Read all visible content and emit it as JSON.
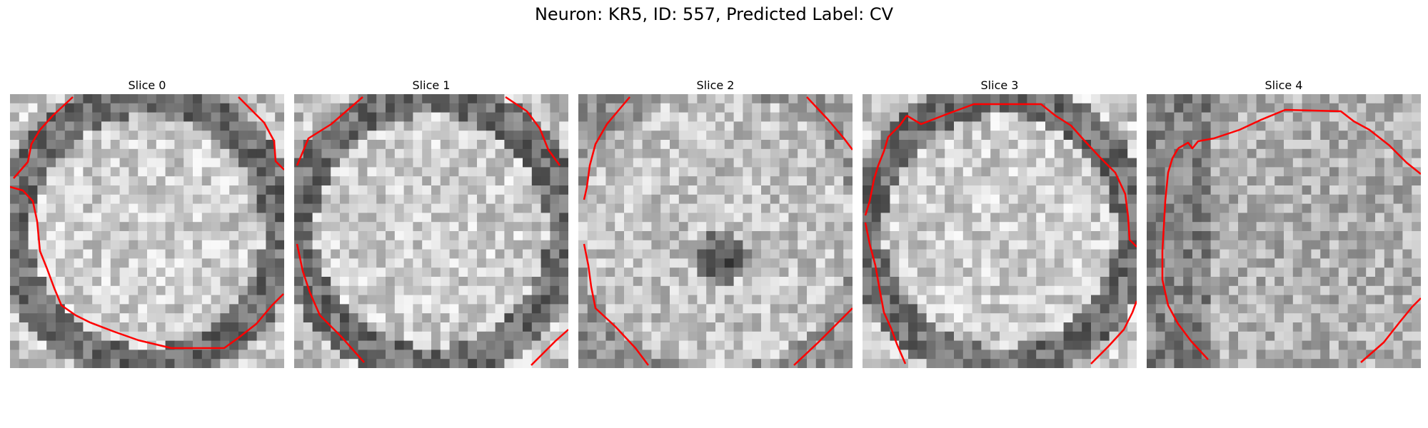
{
  "figure": {
    "title": "Neuron: KR5, ID: 557, Predicted Label: CV",
    "panels": [
      {
        "title": "Slice 0",
        "seed": 11,
        "variant": "ring"
      },
      {
        "title": "Slice 1",
        "seed": 23,
        "variant": "ring"
      },
      {
        "title": "Slice 2",
        "seed": 37,
        "variant": "dark-center"
      },
      {
        "title": "Slice 3",
        "seed": 51,
        "variant": "ring"
      },
      {
        "title": "Slice 4",
        "seed": 67,
        "variant": "noisy"
      }
    ],
    "contour_color": "#ff0000",
    "colormap": "gray"
  }
}
